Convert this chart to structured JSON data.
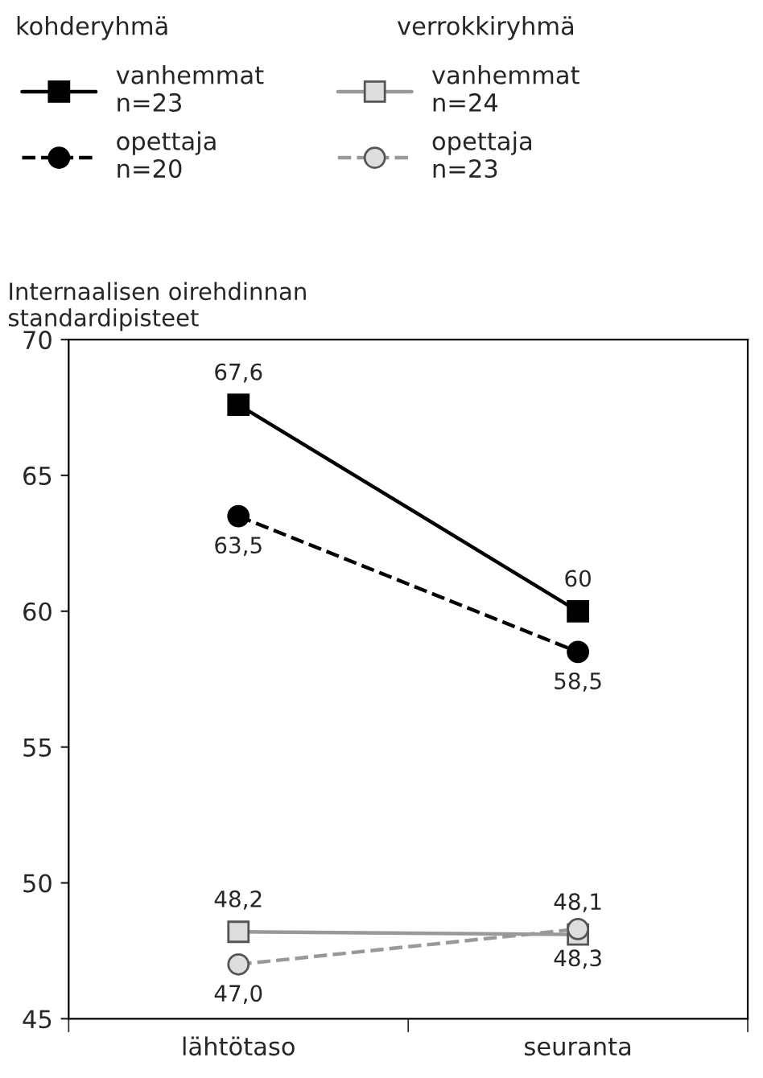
{
  "chart_data": {
    "type": "line",
    "ylabel": "Internaalisen oirehdinnan\nstandardipisteet",
    "categories": [
      "lähtötaso",
      "seuranta"
    ],
    "series": [
      {
        "name": "vanhemmat\nn=23",
        "color": "#000000",
        "values": [
          67.6,
          60
        ],
        "value_labels": [
          "67,6",
          "60"
        ],
        "marker": "square",
        "line_style": "solid"
      },
      {
        "name": "opettaja\nn=20",
        "color": "#000000",
        "values": [
          63.5,
          58.5
        ],
        "value_labels": [
          "63,5",
          "58,5"
        ],
        "marker": "circle",
        "line_style": "dashed"
      },
      {
        "name": "vanhemmat\nn=24",
        "color": "#999999",
        "values": [
          48.2,
          48.1
        ],
        "value_labels": [
          "48,2",
          "48,1"
        ],
        "marker": "square",
        "line_style": "solid"
      },
      {
        "name": "opettaja\nn=23",
        "color": "#999999",
        "values": [
          47.0,
          48.3
        ],
        "value_labels": [
          "47,0",
          "48,3"
        ],
        "marker": "circle",
        "line_style": "dashed"
      }
    ],
    "annotations": [
      "kohderyhmä",
      "verrokkiryhmä"
    ],
    "ylim": [
      45,
      70
    ],
    "yticks": [
      45,
      50,
      55,
      60,
      65,
      70
    ],
    "legend": "top",
    "grid": false
  }
}
